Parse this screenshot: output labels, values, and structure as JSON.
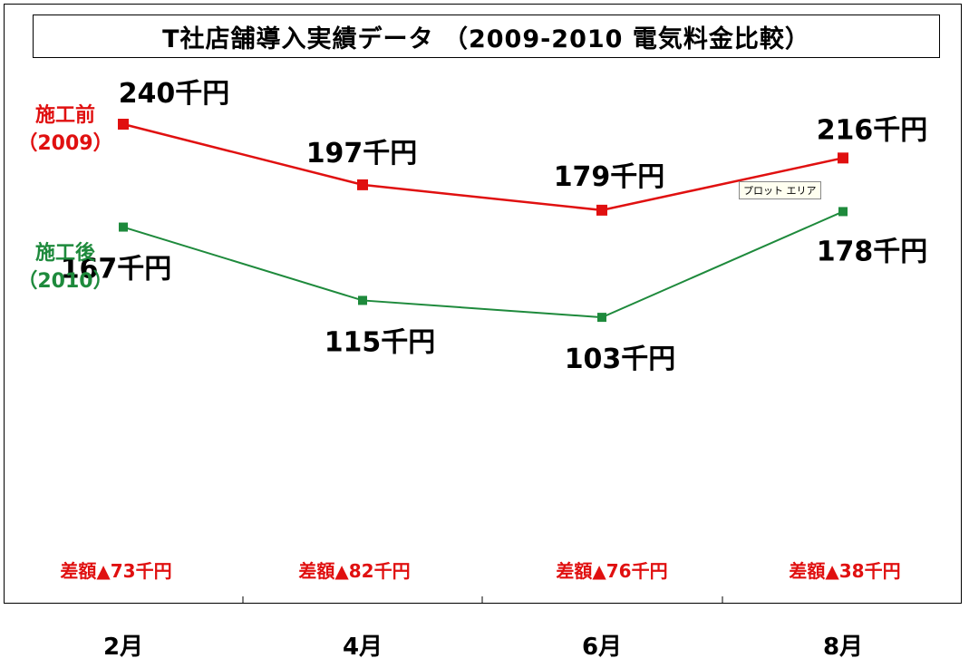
{
  "chart_data": {
    "type": "line",
    "title": "T社店舗導入実績データ （2009-2010 電気料金比較）",
    "categories": [
      "2月",
      "4月",
      "6月",
      "8月"
    ],
    "series": [
      {
        "name": "施工前",
        "name_sub": "（2009）",
        "color": "#e01010",
        "values": [
          240,
          197,
          179,
          216
        ],
        "labels": [
          "240千円",
          "197千円",
          "179千円",
          "216千円"
        ]
      },
      {
        "name": "施工後",
        "name_sub": "（2010）",
        "color": "#1e8a3c",
        "values": [
          167,
          115,
          103,
          178
        ],
        "labels": [
          "167千円",
          "115千円",
          "103千円",
          "178千円"
        ]
      }
    ],
    "differences": [
      "差額▲73千円",
      "差額▲82千円",
      "差額▲76千円",
      "差額▲38千円"
    ],
    "difference_color": "#e01010",
    "tooltip": "プロット エリア",
    "grid": false
  }
}
